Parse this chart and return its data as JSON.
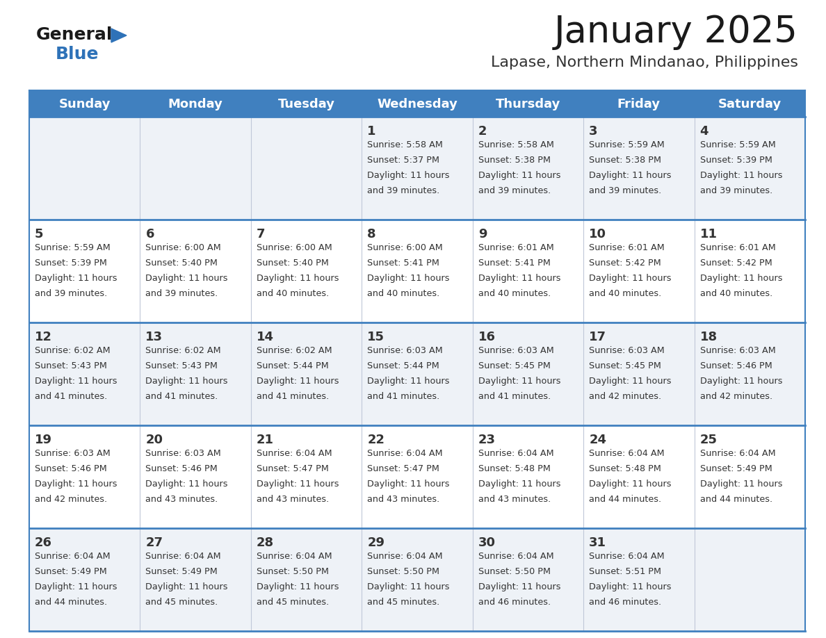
{
  "title": "January 2025",
  "subtitle": "Lapase, Northern Mindanao, Philippines",
  "days_of_week": [
    "Sunday",
    "Monday",
    "Tuesday",
    "Wednesday",
    "Thursday",
    "Friday",
    "Saturday"
  ],
  "header_bg": "#4080bf",
  "header_text": "#ffffff",
  "row_bg_odd": "#eef2f7",
  "row_bg_even": "#ffffff",
  "separator_color": "#4080bf",
  "cell_divider_color": "#c0c8d8",
  "text_color": "#333333",
  "day_num_color": "#333333",
  "title_color": "#1a1a1a",
  "subtitle_color": "#333333",
  "logo_text_color": "#1a1a1a",
  "logo_blue_color": "#2e72b8",
  "calendar_data": [
    [
      null,
      null,
      null,
      {
        "day": 1,
        "sunrise": "5:58 AM",
        "sunset": "5:37 PM",
        "daylight_hours": 11,
        "daylight_minutes": 39
      },
      {
        "day": 2,
        "sunrise": "5:58 AM",
        "sunset": "5:38 PM",
        "daylight_hours": 11,
        "daylight_minutes": 39
      },
      {
        "day": 3,
        "sunrise": "5:59 AM",
        "sunset": "5:38 PM",
        "daylight_hours": 11,
        "daylight_minutes": 39
      },
      {
        "day": 4,
        "sunrise": "5:59 AM",
        "sunset": "5:39 PM",
        "daylight_hours": 11,
        "daylight_minutes": 39
      }
    ],
    [
      {
        "day": 5,
        "sunrise": "5:59 AM",
        "sunset": "5:39 PM",
        "daylight_hours": 11,
        "daylight_minutes": 39
      },
      {
        "day": 6,
        "sunrise": "6:00 AM",
        "sunset": "5:40 PM",
        "daylight_hours": 11,
        "daylight_minutes": 39
      },
      {
        "day": 7,
        "sunrise": "6:00 AM",
        "sunset": "5:40 PM",
        "daylight_hours": 11,
        "daylight_minutes": 40
      },
      {
        "day": 8,
        "sunrise": "6:00 AM",
        "sunset": "5:41 PM",
        "daylight_hours": 11,
        "daylight_minutes": 40
      },
      {
        "day": 9,
        "sunrise": "6:01 AM",
        "sunset": "5:41 PM",
        "daylight_hours": 11,
        "daylight_minutes": 40
      },
      {
        "day": 10,
        "sunrise": "6:01 AM",
        "sunset": "5:42 PM",
        "daylight_hours": 11,
        "daylight_minutes": 40
      },
      {
        "day": 11,
        "sunrise": "6:01 AM",
        "sunset": "5:42 PM",
        "daylight_hours": 11,
        "daylight_minutes": 40
      }
    ],
    [
      {
        "day": 12,
        "sunrise": "6:02 AM",
        "sunset": "5:43 PM",
        "daylight_hours": 11,
        "daylight_minutes": 41
      },
      {
        "day": 13,
        "sunrise": "6:02 AM",
        "sunset": "5:43 PM",
        "daylight_hours": 11,
        "daylight_minutes": 41
      },
      {
        "day": 14,
        "sunrise": "6:02 AM",
        "sunset": "5:44 PM",
        "daylight_hours": 11,
        "daylight_minutes": 41
      },
      {
        "day": 15,
        "sunrise": "6:03 AM",
        "sunset": "5:44 PM",
        "daylight_hours": 11,
        "daylight_minutes": 41
      },
      {
        "day": 16,
        "sunrise": "6:03 AM",
        "sunset": "5:45 PM",
        "daylight_hours": 11,
        "daylight_minutes": 41
      },
      {
        "day": 17,
        "sunrise": "6:03 AM",
        "sunset": "5:45 PM",
        "daylight_hours": 11,
        "daylight_minutes": 42
      },
      {
        "day": 18,
        "sunrise": "6:03 AM",
        "sunset": "5:46 PM",
        "daylight_hours": 11,
        "daylight_minutes": 42
      }
    ],
    [
      {
        "day": 19,
        "sunrise": "6:03 AM",
        "sunset": "5:46 PM",
        "daylight_hours": 11,
        "daylight_minutes": 42
      },
      {
        "day": 20,
        "sunrise": "6:03 AM",
        "sunset": "5:46 PM",
        "daylight_hours": 11,
        "daylight_minutes": 43
      },
      {
        "day": 21,
        "sunrise": "6:04 AM",
        "sunset": "5:47 PM",
        "daylight_hours": 11,
        "daylight_minutes": 43
      },
      {
        "day": 22,
        "sunrise": "6:04 AM",
        "sunset": "5:47 PM",
        "daylight_hours": 11,
        "daylight_minutes": 43
      },
      {
        "day": 23,
        "sunrise": "6:04 AM",
        "sunset": "5:48 PM",
        "daylight_hours": 11,
        "daylight_minutes": 43
      },
      {
        "day": 24,
        "sunrise": "6:04 AM",
        "sunset": "5:48 PM",
        "daylight_hours": 11,
        "daylight_minutes": 44
      },
      {
        "day": 25,
        "sunrise": "6:04 AM",
        "sunset": "5:49 PM",
        "daylight_hours": 11,
        "daylight_minutes": 44
      }
    ],
    [
      {
        "day": 26,
        "sunrise": "6:04 AM",
        "sunset": "5:49 PM",
        "daylight_hours": 11,
        "daylight_minutes": 44
      },
      {
        "day": 27,
        "sunrise": "6:04 AM",
        "sunset": "5:49 PM",
        "daylight_hours": 11,
        "daylight_minutes": 45
      },
      {
        "day": 28,
        "sunrise": "6:04 AM",
        "sunset": "5:50 PM",
        "daylight_hours": 11,
        "daylight_minutes": 45
      },
      {
        "day": 29,
        "sunrise": "6:04 AM",
        "sunset": "5:50 PM",
        "daylight_hours": 11,
        "daylight_minutes": 45
      },
      {
        "day": 30,
        "sunrise": "6:04 AM",
        "sunset": "5:50 PM",
        "daylight_hours": 11,
        "daylight_minutes": 46
      },
      {
        "day": 31,
        "sunrise": "6:04 AM",
        "sunset": "5:51 PM",
        "daylight_hours": 11,
        "daylight_minutes": 46
      },
      null
    ]
  ]
}
